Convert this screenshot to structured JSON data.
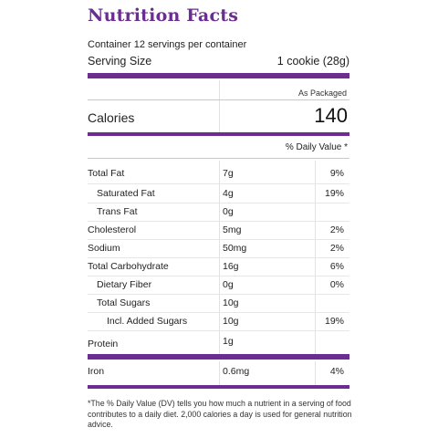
{
  "title": "Nutrition Facts",
  "servings_line": "Container 12 servings per container",
  "serving_size": {
    "label": "Serving Size",
    "value": "1 cookie (28g)"
  },
  "as_packaged": "As Packaged",
  "calories": {
    "label": "Calories",
    "value": "140"
  },
  "dv_header": "% Daily Value *",
  "nutrients": [
    {
      "name": "Total Fat",
      "amount": "7g",
      "dv": "9%"
    },
    {
      "name": "Saturated Fat",
      "amount": "4g",
      "dv": "19%"
    },
    {
      "name": "Trans Fat",
      "amount": "0g",
      "dv": ""
    },
    {
      "name": "Cholesterol",
      "amount": "5mg",
      "dv": "2%"
    },
    {
      "name": "Sodium",
      "amount": "50mg",
      "dv": "2%"
    },
    {
      "name": "Total Carbohydrate",
      "amount": "16g",
      "dv": "6%"
    },
    {
      "name": "Dietary Fiber",
      "amount": "0g",
      "dv": "0%"
    },
    {
      "name": "Total Sugars",
      "amount": "10g",
      "dv": ""
    },
    {
      "name": "Incl. Added Sugars",
      "amount": "10g",
      "dv": "19%"
    },
    {
      "name": "Protein",
      "amount": "1g",
      "dv": ""
    }
  ],
  "iron": {
    "name": "Iron",
    "amount": "0.6mg",
    "dv": "4%"
  },
  "footnote": "*The % Daily Value (DV) tells you how much a nutrient in a serving of food contributes to a daily diet. 2,000 calories a day is used for general nutrition advice.",
  "colors": {
    "accent": "#6b2d8f"
  }
}
